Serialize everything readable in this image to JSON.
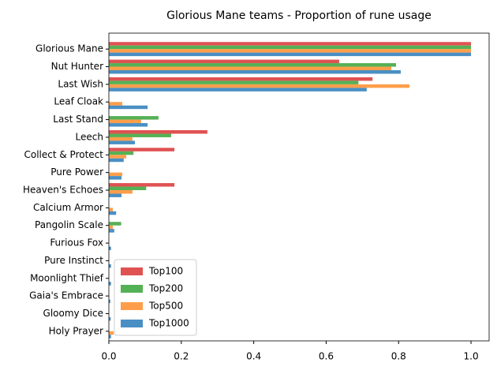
{
  "chart_data": {
    "type": "hbar",
    "title": "Glorious Mane teams - Proportion of rune usage",
    "categories": [
      "Glorious Mane",
      "Nut Hunter",
      "Last Wish",
      "Leaf Cloak",
      "Last Stand",
      "Leech",
      "Collect & Protect",
      "Pure Power",
      "Heaven's Echoes",
      "Calcium Armor",
      "Pangolin Scale",
      "Furious Fox",
      "Pure Instinct",
      "Moonlight Thief",
      "Gaia's Embrace",
      "Gloomy Dice",
      "Holy Prayer"
    ],
    "series": [
      {
        "name": "Top100",
        "color": "#e05252",
        "values": [
          1.0,
          0.636,
          0.728,
          0,
          0,
          0.272,
          0.181,
          0,
          0.181,
          0,
          0,
          0,
          0,
          0,
          0,
          0,
          0
        ]
      },
      {
        "name": "Top200",
        "color": "#55b155",
        "values": [
          1.0,
          0.793,
          0.689,
          0,
          0.137,
          0.172,
          0.068,
          0,
          0.103,
          0,
          0.034,
          0,
          0,
          0,
          0,
          0,
          0
        ]
      },
      {
        "name": "Top500",
        "color": "#ff9e4a",
        "values": [
          1.0,
          0.78,
          0.83,
          0.037,
          0.089,
          0.065,
          0.048,
          0.037,
          0.065,
          0.011,
          0.011,
          0,
          0,
          0,
          0,
          0,
          0.013
        ]
      },
      {
        "name": "Top1000",
        "color": "#4a8fc4",
        "values": [
          1.0,
          0.806,
          0.712,
          0.107,
          0.107,
          0.072,
          0.041,
          0.035,
          0.035,
          0.02,
          0.015,
          0.006,
          0.006,
          0.006,
          0.004,
          0.005,
          0.006
        ]
      }
    ],
    "xlim": [
      0,
      1.05
    ],
    "xticks": [
      {
        "value": 0,
        "label": "0.0"
      },
      0.2,
      0.4,
      0.6,
      0.8,
      {
        "value": 1,
        "label": "1.0"
      }
    ],
    "legend": "lower left"
  }
}
